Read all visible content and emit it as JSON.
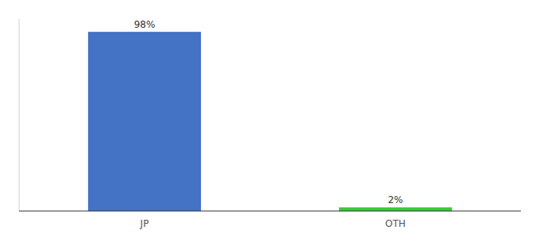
{
  "chart_data": {
    "type": "bar",
    "categories": [
      "JP",
      "OTH"
    ],
    "values": [
      98,
      2
    ],
    "value_labels": [
      "98%",
      "2%"
    ],
    "colors": [
      "#4472c4",
      "#33cc33"
    ],
    "ylim": [
      0,
      105
    ],
    "data_labels": true,
    "tick_labels": "x"
  }
}
